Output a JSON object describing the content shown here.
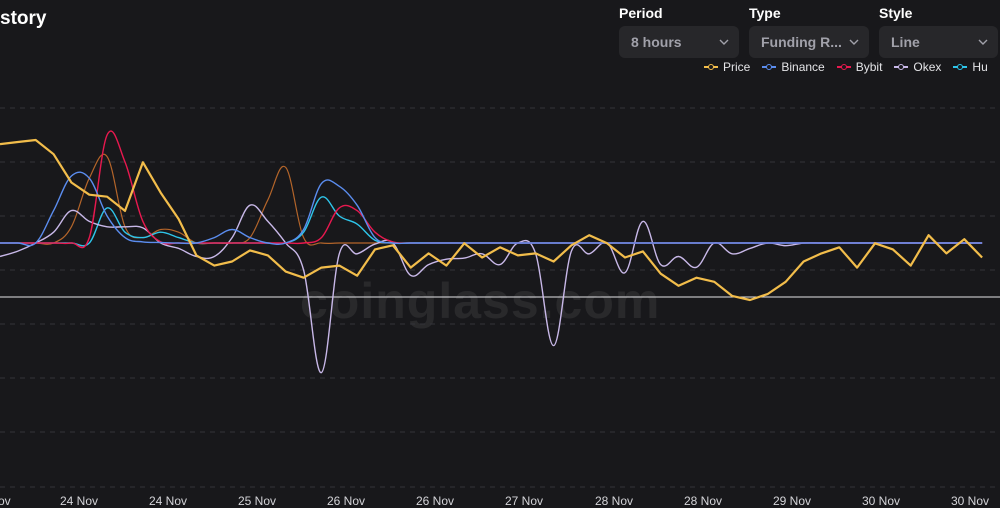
{
  "header": {
    "title": "story"
  },
  "controls": {
    "period": {
      "label": "Period",
      "value": "8 hours"
    },
    "type": {
      "label": "Type",
      "value": "Funding R..."
    },
    "style": {
      "label": "Style",
      "value": "Line"
    }
  },
  "watermark": "coinglass.com",
  "colors": {
    "background": "#18181b",
    "grid": "#33343a",
    "price": "#f2bd4b",
    "binance": "#5b8def",
    "bybit": "#e8184f",
    "okex": "#c8b8e8",
    "huobi": "#2ec5ea",
    "extra": "#b4652a"
  },
  "chart_data": {
    "type": "line",
    "x_ticks": [
      "Nov",
      "24 Nov",
      "24 Nov",
      "25 Nov",
      "26 Nov",
      "26 Nov",
      "27 Nov",
      "28 Nov",
      "28 Nov",
      "29 Nov",
      "30 Nov",
      "30 Nov"
    ],
    "grid": true,
    "legend_position": "top-right",
    "legend": [
      "Price",
      "Binance",
      "Bybit",
      "Okex",
      "Hu"
    ],
    "x_range": [
      0,
      56
    ],
    "funding_range": [
      -0.025,
      0.035
    ],
    "series": [
      {
        "name": "Price",
        "key": "price",
        "axis": "price",
        "width": 2.2,
        "values": [
          3.6,
          3.62,
          3.64,
          3.5,
          3.22,
          3.1,
          3.08,
          2.94,
          3.42,
          3.12,
          2.86,
          2.5,
          2.4,
          2.44,
          2.55,
          2.5,
          2.34,
          2.28,
          2.38,
          2.4,
          2.3,
          2.56,
          2.6,
          2.38,
          2.52,
          2.4,
          2.62,
          2.48,
          2.58,
          2.5,
          2.52,
          2.44,
          2.6,
          2.7,
          2.62,
          2.48,
          2.54,
          2.32,
          2.2,
          2.28,
          2.24,
          2.1,
          2.06,
          2.12,
          2.24,
          2.44,
          2.52,
          2.58,
          2.38,
          2.62,
          2.56,
          2.4,
          2.7,
          2.52,
          2.66,
          2.48
        ]
      },
      {
        "name": "Binance",
        "key": "binance",
        "axis": "funding",
        "width": 1.4,
        "values": [
          0.01,
          0.01,
          0.01,
          0.016,
          0.0224,
          0.022,
          0.015,
          0.011,
          0.0102,
          0.0101,
          0.01,
          0.01,
          0.011,
          0.0125,
          0.011,
          0.01,
          0.01,
          0.0125,
          0.021,
          0.0205,
          0.017,
          0.011,
          0.01,
          0.01,
          0.01,
          0.01,
          0.01,
          0.01,
          0.01,
          0.01,
          0.01,
          0.01,
          0.01,
          0.01,
          0.01,
          0.01,
          0.01,
          0.01,
          0.01,
          0.01,
          0.01,
          0.01,
          0.01,
          0.01,
          0.01,
          0.01,
          0.01,
          0.01,
          0.01,
          0.01,
          0.01,
          0.01,
          0.01,
          0.01,
          0.01,
          0.01
        ]
      },
      {
        "name": "Bybit",
        "key": "bybit",
        "axis": "funding",
        "width": 1.4,
        "values": [
          0.01,
          0.01,
          0.01,
          0.01,
          0.01,
          0.011,
          0.03,
          0.025,
          0.014,
          0.0102,
          0.01,
          0.01,
          0.01,
          0.01,
          0.01,
          0.01,
          0.01,
          0.01,
          0.011,
          0.0165,
          0.016,
          0.012,
          0.0102,
          0.01,
          0.01,
          0.01,
          0.01,
          0.01,
          0.01,
          0.01,
          0.01,
          0.01,
          0.01,
          0.01,
          0.01,
          0.01,
          0.01,
          0.01,
          0.01,
          0.01,
          0.01,
          0.01,
          0.01,
          0.01,
          0.01,
          0.01,
          0.01,
          0.01,
          0.01,
          0.01,
          0.01,
          0.01,
          0.01,
          0.01,
          0.01,
          0.01
        ]
      },
      {
        "name": "Okex",
        "key": "okex",
        "axis": "funding",
        "width": 1.4,
        "values": [
          0.0075,
          0.0085,
          0.01,
          0.012,
          0.016,
          0.014,
          0.013,
          0.013,
          0.0128,
          0.01,
          0.009,
          0.0075,
          0.0075,
          0.011,
          0.017,
          0.014,
          0.01,
          0.005,
          -0.014,
          0.008,
          0.008,
          0.0098,
          0.01,
          0.004,
          0.006,
          0.007,
          0.0072,
          0.008,
          0.006,
          0.01,
          0.008,
          -0.009,
          0.0085,
          0.008,
          0.01,
          0.0045,
          0.014,
          0.006,
          0.0075,
          0.0055,
          0.01,
          0.008,
          0.009,
          0.01,
          0.0095,
          0.01,
          0.01,
          0.01,
          0.01,
          0.01,
          0.01,
          0.01,
          0.01,
          0.01,
          0.01,
          0.01
        ]
      },
      {
        "name": "Hu",
        "key": "huobi",
        "axis": "funding",
        "width": 1.4,
        "values": [
          0.01,
          0.01,
          0.01,
          0.01,
          0.01,
          0.01,
          0.0165,
          0.012,
          0.011,
          0.012,
          0.011,
          0.01,
          0.01,
          0.01,
          0.01,
          0.01,
          0.01,
          0.012,
          0.0185,
          0.015,
          0.0135,
          0.0105,
          0.01,
          0.01,
          0.01,
          0.01,
          0.01,
          0.01,
          0.01,
          0.01,
          0.01,
          0.01,
          0.01,
          0.01,
          0.01,
          0.01,
          0.01,
          0.01,
          0.01,
          0.01,
          0.01,
          0.01,
          0.01,
          0.01,
          0.01,
          0.01,
          0.01,
          0.01,
          0.01,
          0.01,
          0.01,
          0.01,
          0.01,
          0.01,
          0.01,
          0.01
        ]
      },
      {
        "name": "",
        "key": "extra",
        "axis": "funding",
        "width": 1.2,
        "values": [
          0.01,
          0.01,
          0.01,
          0.01,
          0.013,
          0.022,
          0.026,
          0.013,
          0.011,
          0.0125,
          0.012,
          0.01,
          0.01,
          0.01,
          0.011,
          0.018,
          0.024,
          0.011,
          0.01,
          0.01,
          0.01,
          0.01,
          0.01,
          0.01,
          0.01,
          0.01,
          0.01,
          0.01,
          0.01,
          0.01,
          0.01,
          0.01,
          0.01,
          0.01,
          0.01,
          0.01,
          0.01,
          0.01,
          0.01,
          0.01,
          0.01,
          0.01,
          0.01,
          0.01,
          0.01,
          0.01,
          0.01,
          0.01,
          0.01,
          0.01,
          0.01,
          0.01,
          0.01,
          0.01,
          0.01,
          0.01
        ]
      }
    ]
  }
}
